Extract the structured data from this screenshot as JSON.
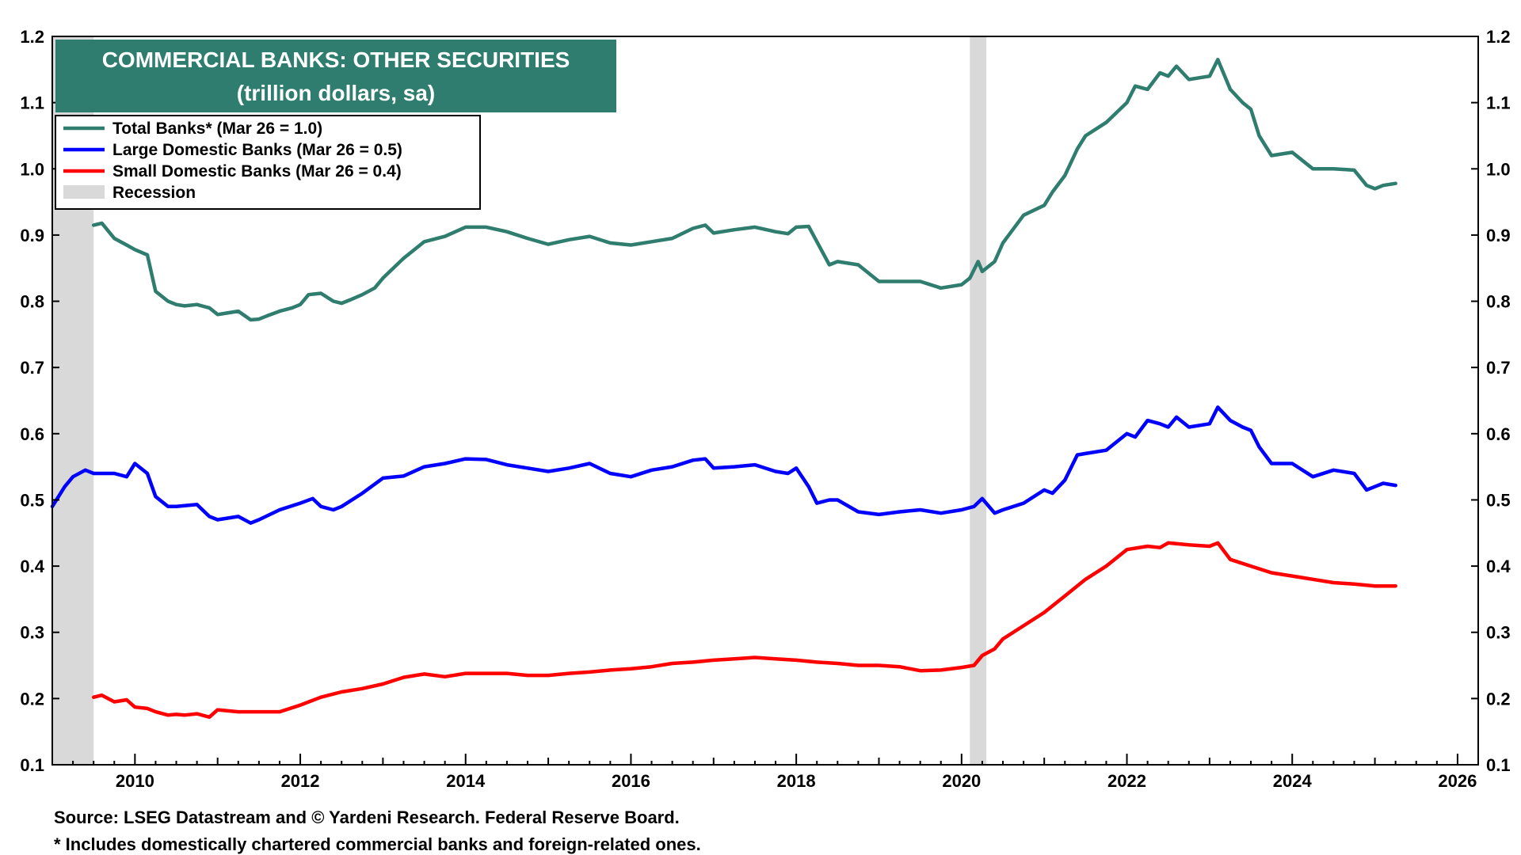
{
  "chart_data": {
    "type": "line",
    "title": "COMMERCIAL BANKS: OTHER SECURITIES",
    "subtitle": "(trillion dollars, sa)",
    "ylim": [
      0.1,
      1.2
    ],
    "y_ticks": [
      "0.1",
      "0.2",
      "0.3",
      "0.4",
      "0.5",
      "0.6",
      "0.7",
      "0.8",
      "0.9",
      "1.0",
      "1.1",
      "1.2"
    ],
    "xlim": [
      2009.0,
      2026.25
    ],
    "x_ticks": [
      "2010",
      "2012",
      "2014",
      "2016",
      "2018",
      "2020",
      "2022",
      "2024",
      "2026"
    ],
    "grid": false,
    "legend_position": "top-left",
    "colors": {
      "total": "#2e7d6e",
      "large": "#0000ff",
      "small": "#ff0000",
      "recession": "#d9d9d9",
      "title_box": "#2e7d6e"
    },
    "legend": [
      {
        "key": "total",
        "label": "Total Banks* (Mar 26 = 1.0)"
      },
      {
        "key": "large",
        "label": "Large Domestic Banks (Mar 26 = 0.5)"
      },
      {
        "key": "small",
        "label": "Small Domestic Banks (Mar 26 = 0.4)"
      },
      {
        "key": "recession",
        "label": "Recession"
      }
    ],
    "recessions": [
      [
        2009.0,
        2009.5
      ],
      [
        2020.1,
        2020.3
      ]
    ],
    "series": [
      {
        "key": "total",
        "name": "Total Banks* (Mar 26 = 1.0)",
        "x": [
          2009.5,
          2009.6,
          2009.75,
          2009.9,
          2010.0,
          2010.15,
          2010.25,
          2010.4,
          2010.5,
          2010.6,
          2010.75,
          2010.9,
          2011.0,
          2011.1,
          2011.25,
          2011.4,
          2011.5,
          2011.6,
          2011.75,
          2011.9,
          2012.0,
          2012.1,
          2012.25,
          2012.4,
          2012.5,
          2012.6,
          2012.75,
          2012.9,
          2013.0,
          2013.25,
          2013.5,
          2013.75,
          2014.0,
          2014.25,
          2014.5,
          2014.75,
          2015.0,
          2015.25,
          2015.5,
          2015.75,
          2016.0,
          2016.25,
          2016.5,
          2016.75,
          2016.9,
          2017.0,
          2017.25,
          2017.5,
          2017.75,
          2017.9,
          2018.0,
          2018.15,
          2018.25,
          2018.4,
          2018.5,
          2018.75,
          2019.0,
          2019.25,
          2019.5,
          2019.75,
          2020.0,
          2020.1,
          2020.2,
          2020.25,
          2020.4,
          2020.5,
          2020.75,
          2021.0,
          2021.1,
          2021.25,
          2021.4,
          2021.5,
          2021.75,
          2022.0,
          2022.1,
          2022.25,
          2022.4,
          2022.5,
          2022.6,
          2022.75,
          2023.0,
          2023.1,
          2023.25,
          2023.4,
          2023.5,
          2023.6,
          2023.75,
          2024.0,
          2024.25,
          2024.5,
          2024.75,
          2024.9,
          2025.0,
          2025.1,
          2025.25
        ],
        "values": [
          0.915,
          0.918,
          0.895,
          0.885,
          0.878,
          0.87,
          0.815,
          0.8,
          0.795,
          0.793,
          0.795,
          0.79,
          0.78,
          0.782,
          0.785,
          0.772,
          0.773,
          0.778,
          0.785,
          0.79,
          0.795,
          0.81,
          0.812,
          0.8,
          0.797,
          0.802,
          0.81,
          0.82,
          0.835,
          0.865,
          0.89,
          0.898,
          0.912,
          0.912,
          0.905,
          0.895,
          0.886,
          0.893,
          0.898,
          0.888,
          0.885,
          0.89,
          0.895,
          0.91,
          0.915,
          0.903,
          0.908,
          0.912,
          0.905,
          0.902,
          0.912,
          0.913,
          0.89,
          0.855,
          0.86,
          0.855,
          0.83,
          0.83,
          0.83,
          0.82,
          0.825,
          0.835,
          0.86,
          0.845,
          0.86,
          0.888,
          0.93,
          0.945,
          0.965,
          0.99,
          1.03,
          1.05,
          1.07,
          1.1,
          1.125,
          1.12,
          1.145,
          1.14,
          1.155,
          1.135,
          1.14,
          1.165,
          1.12,
          1.1,
          1.09,
          1.05,
          1.02,
          1.025,
          1.0,
          1.0,
          0.998,
          0.975,
          0.97,
          0.975,
          0.978
        ]
      },
      {
        "key": "large",
        "name": "Large Domestic Banks (Mar 26 = 0.5)",
        "x": [
          2009.0,
          2009.15,
          2009.25,
          2009.4,
          2009.5,
          2009.75,
          2009.9,
          2010.0,
          2010.15,
          2010.25,
          2010.4,
          2010.5,
          2010.75,
          2010.9,
          2011.0,
          2011.25,
          2011.4,
          2011.5,
          2011.75,
          2012.0,
          2012.15,
          2012.25,
          2012.4,
          2012.5,
          2012.75,
          2013.0,
          2013.25,
          2013.5,
          2013.75,
          2014.0,
          2014.25,
          2014.5,
          2014.75,
          2015.0,
          2015.25,
          2015.5,
          2015.75,
          2016.0,
          2016.25,
          2016.5,
          2016.75,
          2016.9,
          2017.0,
          2017.25,
          2017.5,
          2017.75,
          2017.9,
          2018.0,
          2018.15,
          2018.25,
          2018.4,
          2018.5,
          2018.75,
          2019.0,
          2019.25,
          2019.5,
          2019.75,
          2020.0,
          2020.15,
          2020.25,
          2020.4,
          2020.5,
          2020.75,
          2021.0,
          2021.1,
          2021.25,
          2021.4,
          2021.5,
          2021.75,
          2022.0,
          2022.1,
          2022.25,
          2022.4,
          2022.5,
          2022.6,
          2022.75,
          2023.0,
          2023.1,
          2023.25,
          2023.4,
          2023.5,
          2023.6,
          2023.75,
          2024.0,
          2024.25,
          2024.5,
          2024.75,
          2024.9,
          2025.0,
          2025.1,
          2025.25
        ],
        "values": [
          0.49,
          0.52,
          0.535,
          0.545,
          0.54,
          0.54,
          0.535,
          0.555,
          0.54,
          0.505,
          0.49,
          0.49,
          0.493,
          0.475,
          0.47,
          0.475,
          0.465,
          0.47,
          0.485,
          0.495,
          0.502,
          0.49,
          0.485,
          0.49,
          0.51,
          0.533,
          0.536,
          0.55,
          0.555,
          0.562,
          0.561,
          0.553,
          0.548,
          0.543,
          0.548,
          0.555,
          0.54,
          0.535,
          0.545,
          0.55,
          0.56,
          0.562,
          0.548,
          0.55,
          0.553,
          0.543,
          0.54,
          0.548,
          0.52,
          0.495,
          0.5,
          0.5,
          0.482,
          0.478,
          0.482,
          0.485,
          0.48,
          0.485,
          0.49,
          0.502,
          0.48,
          0.485,
          0.495,
          0.515,
          0.51,
          0.53,
          0.568,
          0.57,
          0.575,
          0.6,
          0.595,
          0.62,
          0.615,
          0.61,
          0.625,
          0.61,
          0.615,
          0.64,
          0.62,
          0.61,
          0.605,
          0.58,
          0.555,
          0.555,
          0.535,
          0.545,
          0.54,
          0.515,
          0.52,
          0.525,
          0.522
        ]
      },
      {
        "key": "small",
        "name": "Small Domestic Banks (Mar 26 = 0.4)",
        "x": [
          2009.5,
          2009.6,
          2009.75,
          2009.9,
          2010.0,
          2010.15,
          2010.25,
          2010.4,
          2010.5,
          2010.6,
          2010.75,
          2010.9,
          2011.0,
          2011.25,
          2011.5,
          2011.75,
          2012.0,
          2012.25,
          2012.5,
          2012.75,
          2013.0,
          2013.25,
          2013.5,
          2013.75,
          2014.0,
          2014.25,
          2014.5,
          2014.75,
          2015.0,
          2015.25,
          2015.5,
          2015.75,
          2016.0,
          2016.25,
          2016.5,
          2016.75,
          2017.0,
          2017.25,
          2017.5,
          2017.75,
          2018.0,
          2018.25,
          2018.5,
          2018.75,
          2019.0,
          2019.25,
          2019.5,
          2019.75,
          2020.0,
          2020.15,
          2020.25,
          2020.4,
          2020.5,
          2020.75,
          2021.0,
          2021.25,
          2021.5,
          2021.75,
          2022.0,
          2022.25,
          2022.4,
          2022.5,
          2022.75,
          2023.0,
          2023.1,
          2023.25,
          2023.5,
          2023.75,
          2024.0,
          2024.25,
          2024.5,
          2024.75,
          2025.0,
          2025.25
        ],
        "values": [
          0.202,
          0.205,
          0.195,
          0.198,
          0.187,
          0.185,
          0.18,
          0.175,
          0.176,
          0.175,
          0.177,
          0.172,
          0.183,
          0.18,
          0.18,
          0.18,
          0.19,
          0.202,
          0.21,
          0.215,
          0.222,
          0.232,
          0.237,
          0.233,
          0.238,
          0.238,
          0.238,
          0.235,
          0.235,
          0.238,
          0.24,
          0.243,
          0.245,
          0.248,
          0.253,
          0.255,
          0.258,
          0.26,
          0.262,
          0.26,
          0.258,
          0.255,
          0.253,
          0.25,
          0.25,
          0.248,
          0.242,
          0.243,
          0.247,
          0.25,
          0.265,
          0.275,
          0.29,
          0.31,
          0.33,
          0.355,
          0.38,
          0.4,
          0.425,
          0.43,
          0.428,
          0.435,
          0.432,
          0.43,
          0.435,
          0.41,
          0.4,
          0.39,
          0.385,
          0.38,
          0.375,
          0.373,
          0.37,
          0.37
        ]
      }
    ],
    "notes": [
      "Source: LSEG Datastream and © Yardeni Research. Federal Reserve Board.",
      "* Includes domestically chartered commercial banks and foreign-related ones."
    ]
  }
}
